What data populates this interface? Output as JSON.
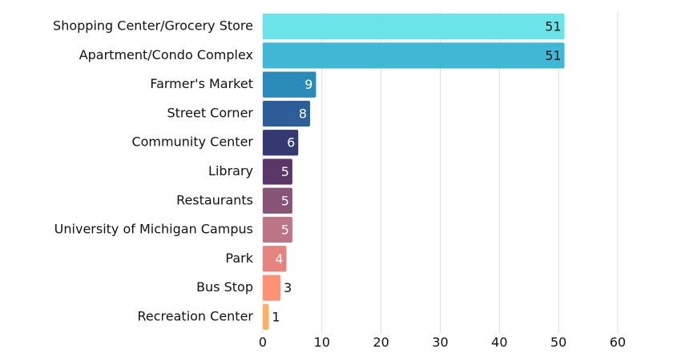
{
  "chart_data": {
    "type": "bar",
    "orientation": "horizontal",
    "title": "",
    "xlabel": "",
    "ylabel": "",
    "xlim": [
      0,
      60
    ],
    "x_ticks": [
      0,
      10,
      20,
      30,
      40,
      50,
      60
    ],
    "grid": true,
    "legend": "none",
    "categories": [
      "Shopping Center/Grocery Store",
      "Apartment/Condo Complex",
      "Farmer's Market",
      "Street Corner",
      "Community Center",
      "Library",
      "Restaurants",
      "University of Michigan Campus",
      "Park",
      "Bus Stop",
      "Recreation Center"
    ],
    "values": [
      51,
      51,
      9,
      8,
      6,
      5,
      5,
      5,
      4,
      3,
      1
    ],
    "bar_colors": [
      "#6ae4e8",
      "#3fb8d6",
      "#2b8bb8",
      "#2e5e98",
      "#333a72",
      "#5a3768",
      "#885475",
      "#bb7584",
      "#e5847f",
      "#ff9275",
      "#ffb064"
    ],
    "value_label_colors": [
      "#111111",
      "#111111",
      "#ffffff",
      "#ffffff",
      "#ffffff",
      "#ffffff",
      "#ffffff",
      "#ffffff",
      "#ffffff",
      "#111111",
      "#111111"
    ]
  }
}
